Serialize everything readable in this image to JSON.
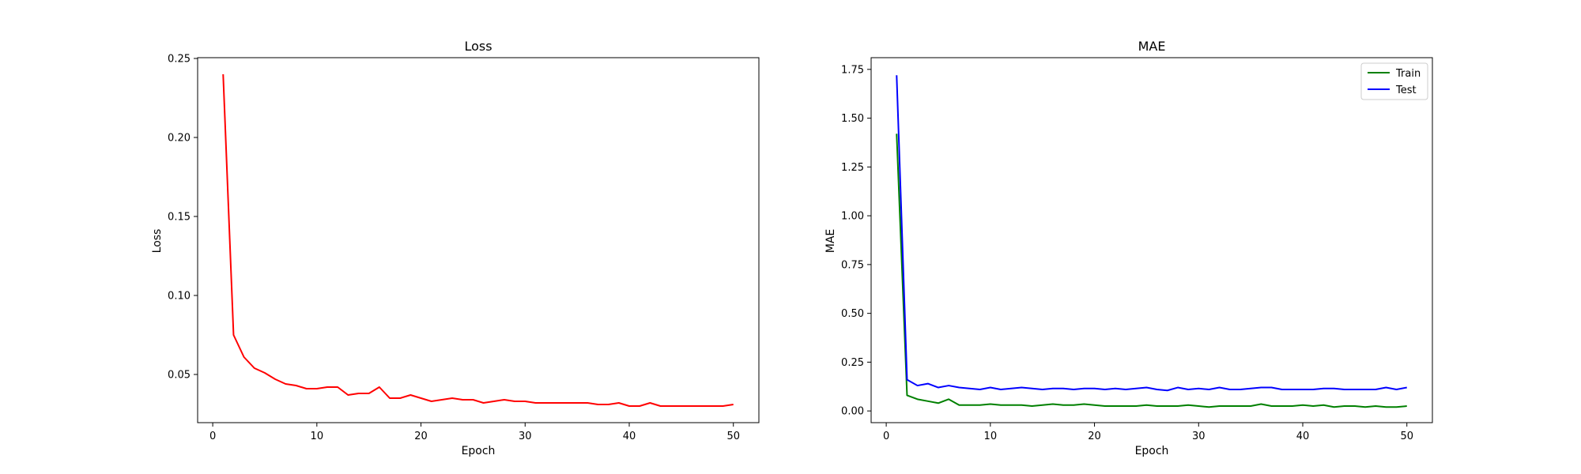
{
  "chart_data": [
    {
      "type": "line",
      "title": "Loss",
      "xlabel": "Epoch",
      "ylabel": "Loss",
      "xlim": [
        -1.45,
        52.45
      ],
      "ylim": [
        0.0195,
        0.2505
      ],
      "xticks": [
        0,
        10,
        20,
        30,
        40,
        50
      ],
      "xtick_labels": [
        "0",
        "10",
        "20",
        "30",
        "40",
        "50"
      ],
      "yticks": [
        0.05,
        0.1,
        0.15,
        0.2,
        0.25
      ],
      "ytick_labels": [
        "0.05",
        "0.10",
        "0.15",
        "0.20",
        "0.25"
      ],
      "grid": false,
      "legend": null,
      "series": [
        {
          "color": "#ff0000",
          "x": [
            1,
            2,
            3,
            4,
            5,
            6,
            7,
            8,
            9,
            10,
            11,
            12,
            13,
            14,
            15,
            16,
            17,
            18,
            19,
            20,
            21,
            22,
            23,
            24,
            25,
            26,
            27,
            28,
            29,
            30,
            31,
            32,
            33,
            34,
            35,
            36,
            37,
            38,
            39,
            40,
            41,
            42,
            43,
            44,
            45,
            46,
            47,
            48,
            49,
            50
          ],
          "values": [
            0.24,
            0.075,
            0.061,
            0.054,
            0.051,
            0.047,
            0.044,
            0.043,
            0.041,
            0.041,
            0.042,
            0.042,
            0.037,
            0.038,
            0.038,
            0.042,
            0.035,
            0.035,
            0.037,
            0.035,
            0.033,
            0.034,
            0.035,
            0.034,
            0.034,
            0.032,
            0.033,
            0.034,
            0.033,
            0.033,
            0.032,
            0.032,
            0.032,
            0.032,
            0.032,
            0.032,
            0.031,
            0.031,
            0.032,
            0.03,
            0.03,
            0.032,
            0.03,
            0.03,
            0.03,
            0.03,
            0.03,
            0.03,
            0.03,
            0.031
          ]
        }
      ]
    },
    {
      "type": "line",
      "title": "MAE",
      "xlabel": "Epoch",
      "ylabel": "MAE",
      "xlim": [
        -1.45,
        52.45
      ],
      "ylim": [
        -0.06,
        1.81
      ],
      "xticks": [
        0,
        10,
        20,
        30,
        40,
        50
      ],
      "xtick_labels": [
        "0",
        "10",
        "20",
        "30",
        "40",
        "50"
      ],
      "yticks": [
        0.0,
        0.25,
        0.5,
        0.75,
        1.0,
        1.25,
        1.5,
        1.75
      ],
      "ytick_labels": [
        "0.00",
        "0.25",
        "0.50",
        "0.75",
        "1.00",
        "1.25",
        "1.50",
        "1.75"
      ],
      "grid": false,
      "legend": "top-right",
      "series": [
        {
          "name": "Train",
          "color": "#008000",
          "x": [
            1,
            2,
            3,
            4,
            5,
            6,
            7,
            8,
            9,
            10,
            11,
            12,
            13,
            14,
            15,
            16,
            17,
            18,
            19,
            20,
            21,
            22,
            23,
            24,
            25,
            26,
            27,
            28,
            29,
            30,
            31,
            32,
            33,
            34,
            35,
            36,
            37,
            38,
            39,
            40,
            41,
            42,
            43,
            44,
            45,
            46,
            47,
            48,
            49,
            50
          ],
          "values": [
            1.42,
            0.08,
            0.06,
            0.05,
            0.04,
            0.06,
            0.03,
            0.03,
            0.03,
            0.035,
            0.03,
            0.03,
            0.03,
            0.025,
            0.03,
            0.035,
            0.03,
            0.03,
            0.035,
            0.03,
            0.025,
            0.025,
            0.025,
            0.025,
            0.03,
            0.025,
            0.025,
            0.025,
            0.03,
            0.025,
            0.02,
            0.025,
            0.025,
            0.025,
            0.025,
            0.035,
            0.025,
            0.025,
            0.025,
            0.03,
            0.025,
            0.03,
            0.02,
            0.025,
            0.025,
            0.02,
            0.025,
            0.02,
            0.02,
            0.025
          ]
        },
        {
          "name": "Test",
          "color": "#0000ff",
          "x": [
            1,
            2,
            3,
            4,
            5,
            6,
            7,
            8,
            9,
            10,
            11,
            12,
            13,
            14,
            15,
            16,
            17,
            18,
            19,
            20,
            21,
            22,
            23,
            24,
            25,
            26,
            27,
            28,
            29,
            30,
            31,
            32,
            33,
            34,
            35,
            36,
            37,
            38,
            39,
            40,
            41,
            42,
            43,
            44,
            45,
            46,
            47,
            48,
            49,
            50
          ],
          "values": [
            1.72,
            0.16,
            0.13,
            0.14,
            0.12,
            0.13,
            0.12,
            0.115,
            0.11,
            0.12,
            0.11,
            0.115,
            0.12,
            0.115,
            0.11,
            0.115,
            0.115,
            0.11,
            0.115,
            0.115,
            0.11,
            0.115,
            0.11,
            0.115,
            0.12,
            0.11,
            0.105,
            0.12,
            0.11,
            0.115,
            0.11,
            0.12,
            0.11,
            0.11,
            0.115,
            0.12,
            0.12,
            0.11,
            0.11,
            0.11,
            0.11,
            0.115,
            0.115,
            0.11,
            0.11,
            0.11,
            0.11,
            0.12,
            0.11,
            0.12
          ]
        }
      ]
    }
  ]
}
